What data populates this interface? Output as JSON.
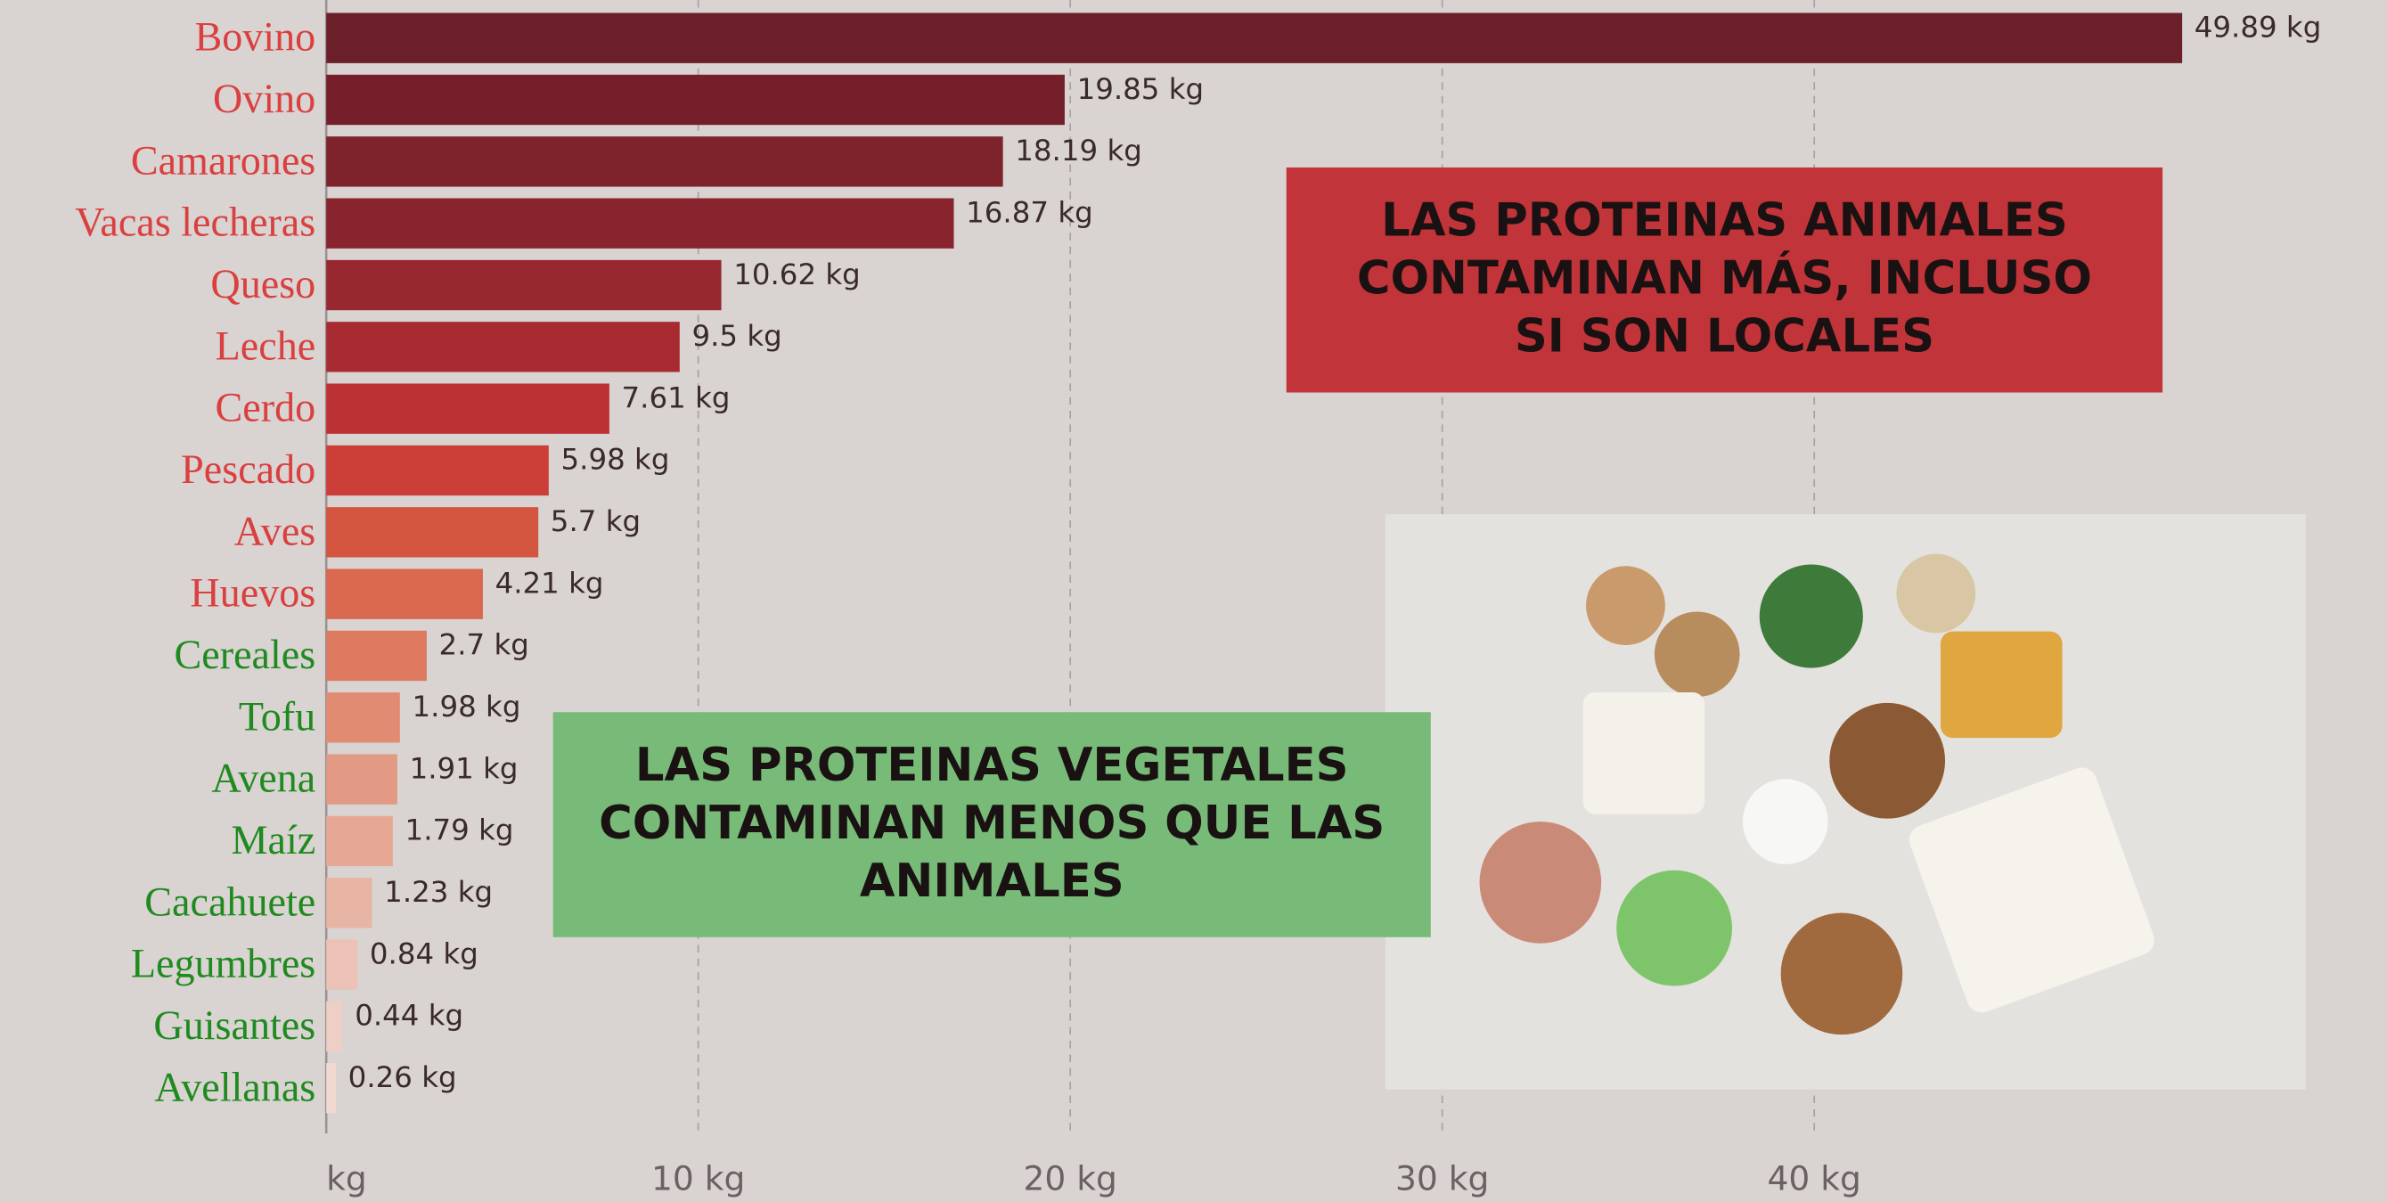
{
  "chart_data": {
    "type": "barh",
    "categories": [
      "Bovino",
      "Ovino",
      "Camarones",
      "Vacas lecheras",
      "Queso",
      "Leche",
      "Cerdo",
      "Pescado",
      "Aves",
      "Huevos",
      "Cereales",
      "Tofu",
      "Avena",
      "Maíz",
      "Cacahuete",
      "Legumbres",
      "Guisantes",
      "Avellanas"
    ],
    "values": [
      49.89,
      19.85,
      18.19,
      16.87,
      10.62,
      9.5,
      7.61,
      5.98,
      5.7,
      4.21,
      2.7,
      1.98,
      1.91,
      1.79,
      1.23,
      0.84,
      0.44,
      0.26
    ],
    "value_labels": [
      "49.89 kg",
      "19.85 kg",
      "18.19 kg",
      "16.87 kg",
      "10.62 kg",
      "9.5 kg",
      "7.61 kg",
      "5.98 kg",
      "5.7 kg",
      "4.21 kg",
      "2.7 kg",
      "1.98 kg",
      "1.91 kg",
      "1.79 kg",
      "1.23 kg",
      "0.84 kg",
      "0.44 kg",
      "0.26 kg"
    ],
    "colors": [
      "#6b1f29",
      "#741f2a",
      "#7e222c",
      "#89242e",
      "#98282f",
      "#a82b31",
      "#bb3134",
      "#cc3f39",
      "#d4553f",
      "#d9684f",
      "#dd7a60",
      "#e08b72",
      "#e39a84",
      "#e6a895",
      "#e8b5a5",
      "#ebc2b5",
      "#eecfc5",
      "#f0d9d1"
    ],
    "label_colors": [
      "#d9403f",
      "#d9403f",
      "#d9403f",
      "#d9403f",
      "#d9403f",
      "#d9403f",
      "#d9403f",
      "#d9403f",
      "#d9403f",
      "#d9403f",
      "#1f8a1f",
      "#1f8a1f",
      "#1f8a1f",
      "#1f8a1f",
      "#1f8a1f",
      "#1f8a1f",
      "#1f8a1f",
      "#1f8a1f"
    ],
    "xlim": [
      0,
      55
    ],
    "xticks": [
      {
        "value": 0,
        "label": "kg"
      },
      {
        "value": 10,
        "label": "10 kg"
      },
      {
        "value": 20,
        "label": "20 kg"
      },
      {
        "value": 30,
        "label": "30 kg"
      },
      {
        "value": 40,
        "label": "40 kg"
      }
    ],
    "grid": true,
    "annotations": [
      {
        "text": "LAS PROTEINAS ANIMALES CONTAMINAN MÁS, INCLUSO SI SON LOCALES",
        "color": "#c1343a"
      },
      {
        "text": "LAS PROTEINAS VEGETALES CONTAMINAN MENOS QUE LAS ANIMALES",
        "color": "#78bb78"
      }
    ]
  }
}
